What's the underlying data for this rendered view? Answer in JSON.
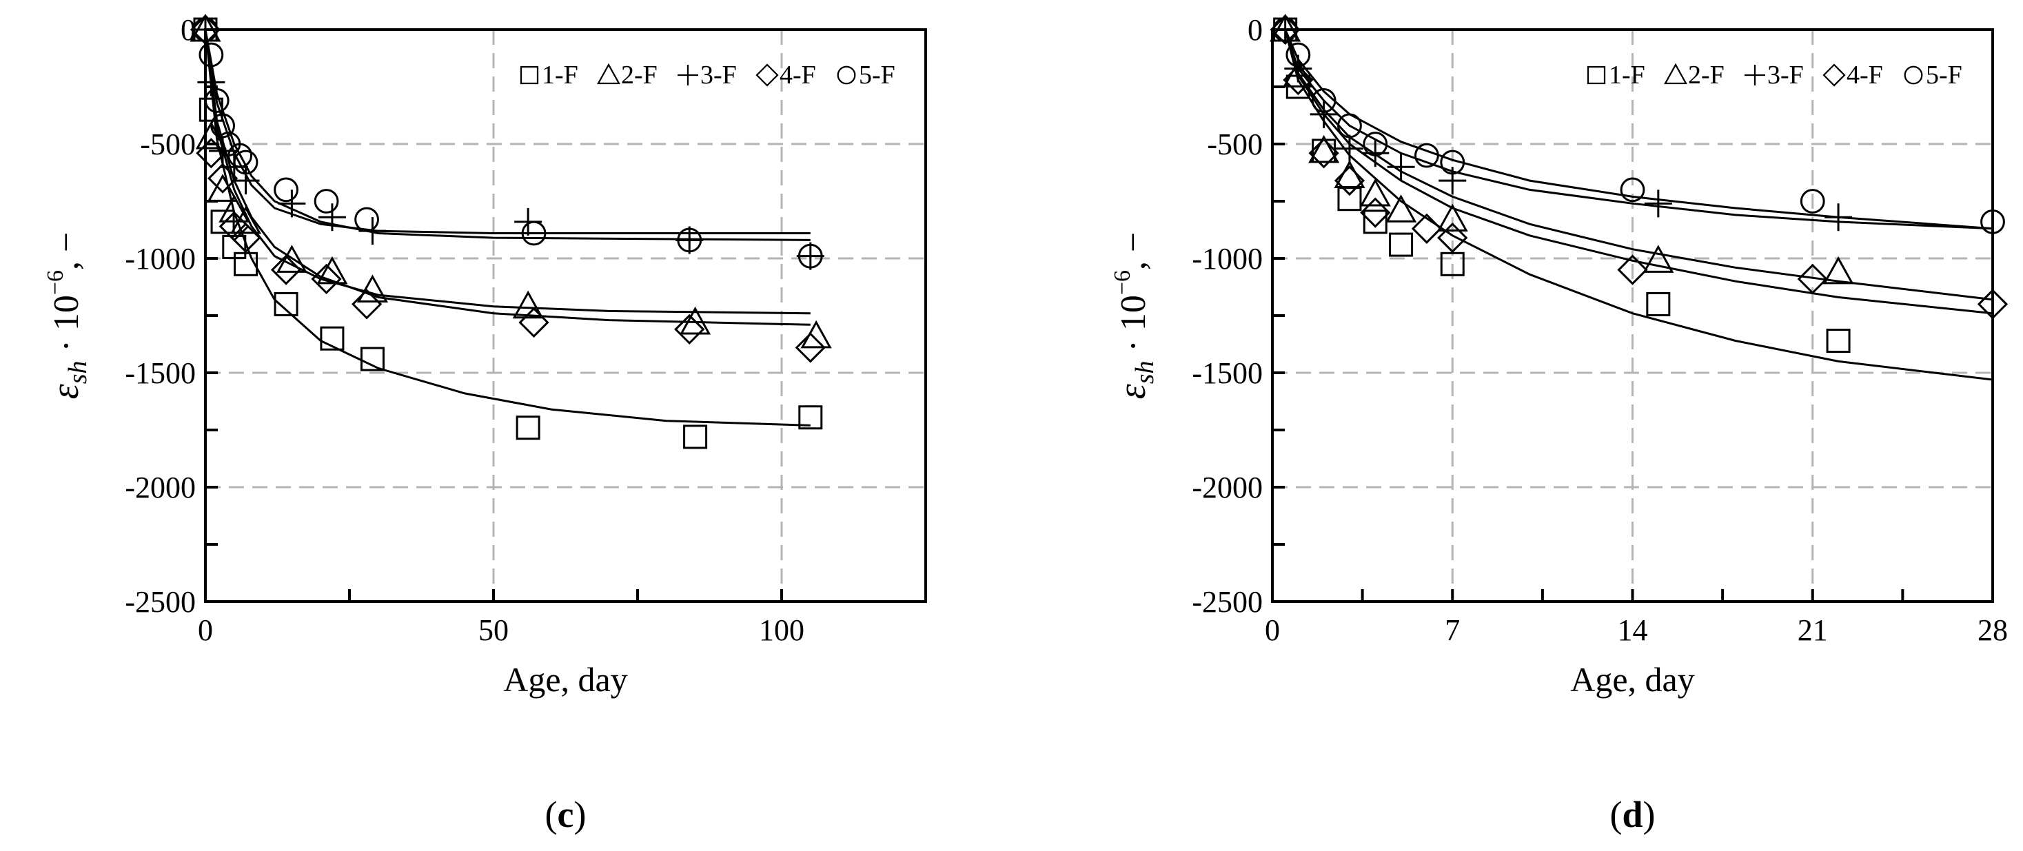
{
  "chart_data": [
    {
      "type": "scatter",
      "panel_label_open": "(",
      "panel_label_letter": "c",
      "panel_label_close": ")",
      "xlabel": "Age, day",
      "ylabel": {
        "symbol": "ε",
        "sub": "sh",
        "dot": " · 10",
        "sup": "−6",
        "tail": ", −"
      },
      "xlim": [
        0,
        125
      ],
      "ylim": [
        -2500,
        0
      ],
      "xticks": [
        0,
        50,
        100
      ],
      "xminor_step": 25,
      "yticks": [
        0,
        -500,
        -1000,
        -1500,
        -2000,
        -2500
      ],
      "yminor_step": 250,
      "grid": true,
      "legend_position": "top-right",
      "series": [
        {
          "name": "1-F",
          "marker": "square",
          "x": [
            0,
            1,
            3,
            5,
            7,
            14,
            22,
            29,
            56,
            85,
            105
          ],
          "y": [
            0,
            -350,
            -840,
            -950,
            -1025,
            -1200,
            -1350,
            -1440,
            -1740,
            -1780,
            -1695
          ],
          "fit": [
            [
              0,
              0
            ],
            [
              2,
              -480
            ],
            [
              5,
              -800
            ],
            [
              8,
              -1000
            ],
            [
              12,
              -1180
            ],
            [
              20,
              -1360
            ],
            [
              30,
              -1480
            ],
            [
              45,
              -1590
            ],
            [
              60,
              -1660
            ],
            [
              80,
              -1710
            ],
            [
              105,
              -1730
            ]
          ]
        },
        {
          "name": "2-F",
          "marker": "triangle",
          "x": [
            0,
            1,
            3,
            5,
            7,
            15,
            22,
            29,
            56,
            85,
            106
          ],
          "y": [
            0,
            -470,
            -700,
            -790,
            -840,
            -1010,
            -1060,
            -1140,
            -1210,
            -1280,
            -1340
          ],
          "fit": [
            [
              0,
              0
            ],
            [
              2,
              -430
            ],
            [
              5,
              -700
            ],
            [
              8,
              -860
            ],
            [
              12,
              -990
            ],
            [
              20,
              -1090
            ],
            [
              30,
              -1160
            ],
            [
              50,
              -1210
            ],
            [
              70,
              -1230
            ],
            [
              105,
              -1240
            ]
          ]
        },
        {
          "name": "3-F",
          "marker": "plus",
          "x": [
            0,
            1,
            3,
            5,
            7,
            15,
            22,
            29,
            56,
            84,
            105
          ],
          "y": [
            0,
            -230,
            -530,
            -600,
            -660,
            -760,
            -820,
            -880,
            -840,
            -920,
            -990
          ],
          "fit": [
            [
              0,
              0
            ],
            [
              2,
              -320
            ],
            [
              5,
              -540
            ],
            [
              8,
              -680
            ],
            [
              12,
              -780
            ],
            [
              20,
              -850
            ],
            [
              30,
              -880
            ],
            [
              50,
              -890
            ],
            [
              105,
              -890
            ]
          ]
        },
        {
          "name": "4-F",
          "marker": "diamond",
          "x": [
            0,
            1,
            3,
            5,
            7,
            14,
            21,
            28,
            57,
            84,
            105
          ],
          "y": [
            0,
            -540,
            -650,
            -860,
            -910,
            -1050,
            -1090,
            -1200,
            -1280,
            -1310,
            -1390
          ],
          "fit": [
            [
              0,
              0
            ],
            [
              2,
              -400
            ],
            [
              5,
              -660
            ],
            [
              8,
              -820
            ],
            [
              12,
              -950
            ],
            [
              20,
              -1080
            ],
            [
              30,
              -1170
            ],
            [
              50,
              -1240
            ],
            [
              70,
              -1270
            ],
            [
              105,
              -1290
            ]
          ]
        },
        {
          "name": "5-F",
          "marker": "circle",
          "x": [
            0,
            1,
            2,
            3,
            4,
            6,
            7,
            14,
            21,
            28,
            57,
            84,
            105
          ],
          "y": [
            0,
            -110,
            -310,
            -420,
            -500,
            -550,
            -580,
            -700,
            -750,
            -830,
            -890,
            -920,
            -990
          ],
          "fit": [
            [
              0,
              0
            ],
            [
              2,
              -280
            ],
            [
              5,
              -500
            ],
            [
              8,
              -640
            ],
            [
              12,
              -750
            ],
            [
              20,
              -840
            ],
            [
              30,
              -890
            ],
            [
              50,
              -910
            ],
            [
              105,
              -920
            ]
          ]
        }
      ]
    },
    {
      "type": "scatter",
      "panel_label_open": "(",
      "panel_label_letter": "d",
      "panel_label_close": ")",
      "xlabel": "Age, day",
      "ylabel": {
        "symbol": "ε",
        "sub": "sh",
        "dot": " · 10",
        "sup": "−6",
        "tail": ", −"
      },
      "xlim": [
        0,
        28
      ],
      "ylim": [
        -2500,
        0
      ],
      "xticks": [
        0,
        7,
        14,
        21,
        28
      ],
      "xminor_step": 3.5,
      "yticks": [
        0,
        -500,
        -1000,
        -1500,
        -2000,
        -2500
      ],
      "yminor_step": 250,
      "grid": true,
      "legend_position": "top-right",
      "series": [
        {
          "name": "1-F",
          "marker": "square",
          "x": [
            0.5,
            1,
            2,
            3,
            4,
            5,
            7,
            15,
            22
          ],
          "y": [
            0,
            -250,
            -530,
            -740,
            -840,
            -940,
            -1025,
            -1200,
            -1360
          ],
          "fit": [
            [
              0.5,
              0
            ],
            [
              1,
              -220
            ],
            [
              2,
              -400
            ],
            [
              3,
              -550
            ],
            [
              5,
              -750
            ],
            [
              7,
              -900
            ],
            [
              10,
              -1070
            ],
            [
              14,
              -1240
            ],
            [
              18,
              -1360
            ],
            [
              22,
              -1450
            ],
            [
              28,
              -1530
            ]
          ]
        },
        {
          "name": "2-F",
          "marker": "triangle",
          "x": [
            0.5,
            1,
            2,
            3,
            4,
            5,
            7,
            15,
            22
          ],
          "y": [
            0,
            -200,
            -530,
            -640,
            -720,
            -790,
            -830,
            -1010,
            -1060
          ],
          "fit": [
            [
              0.5,
              0
            ],
            [
              1,
              -200
            ],
            [
              2,
              -370
            ],
            [
              3,
              -500
            ],
            [
              5,
              -660
            ],
            [
              7,
              -780
            ],
            [
              10,
              -900
            ],
            [
              14,
              -1010
            ],
            [
              18,
              -1100
            ],
            [
              22,
              -1170
            ],
            [
              28,
              -1240
            ]
          ]
        },
        {
          "name": "3-F",
          "marker": "plus",
          "x": [
            0.5,
            1,
            2,
            3,
            4,
            5,
            7,
            15,
            22
          ],
          "y": [
            0,
            -170,
            -370,
            -520,
            -540,
            -600,
            -660,
            -760,
            -820
          ],
          "fit": [
            [
              0.5,
              0
            ],
            [
              1,
              -170
            ],
            [
              2,
              -310
            ],
            [
              3,
              -420
            ],
            [
              5,
              -540
            ],
            [
              7,
              -620
            ],
            [
              10,
              -700
            ],
            [
              14,
              -760
            ],
            [
              18,
              -810
            ],
            [
              22,
              -840
            ],
            [
              28,
              -870
            ]
          ]
        },
        {
          "name": "4-F",
          "marker": "diamond",
          "x": [
            0.5,
            1,
            2,
            3,
            4,
            6,
            7,
            14,
            21,
            28
          ],
          "y": [
            0,
            -220,
            -540,
            -660,
            -800,
            -870,
            -910,
            -1050,
            -1090,
            -1200
          ],
          "fit": [
            [
              0.5,
              0
            ],
            [
              1,
              -190
            ],
            [
              2,
              -350
            ],
            [
              3,
              -470
            ],
            [
              5,
              -620
            ],
            [
              7,
              -730
            ],
            [
              10,
              -850
            ],
            [
              14,
              -960
            ],
            [
              18,
              -1040
            ],
            [
              22,
              -1100
            ],
            [
              28,
              -1180
            ]
          ]
        },
        {
          "name": "5-F",
          "marker": "circle",
          "x": [
            0.5,
            1,
            2,
            3,
            4,
            6,
            7,
            14,
            21,
            28
          ],
          "y": [
            0,
            -110,
            -310,
            -420,
            -500,
            -550,
            -580,
            -700,
            -750,
            -840
          ],
          "fit": [
            [
              0.5,
              0
            ],
            [
              1,
              -130
            ],
            [
              2,
              -270
            ],
            [
              3,
              -370
            ],
            [
              5,
              -490
            ],
            [
              7,
              -570
            ],
            [
              10,
              -660
            ],
            [
              14,
              -730
            ],
            [
              18,
              -780
            ],
            [
              22,
              -820
            ],
            [
              28,
              -870
            ]
          ]
        }
      ]
    }
  ]
}
